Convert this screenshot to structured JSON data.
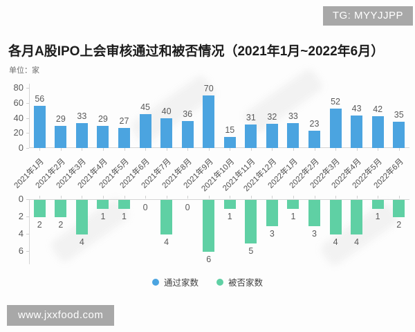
{
  "header": {
    "tg_badge": "TG: MYYJJPP",
    "title": "各月A股IPO上会审核通过和被否情况（2021年1月~2022年6月）",
    "unit_label": "单位：家"
  },
  "footer": {
    "site_badge": "www.jxxfood.com"
  },
  "colors": {
    "approved": "#4ba4e0",
    "rejected": "#5fd0a4",
    "badge_bg": "#a8a8a8",
    "badge_text": "#ffffff",
    "axis_text": "#595959",
    "axis_line": "#d4d4d4"
  },
  "chart_data": {
    "type": "bar",
    "title": "各月A股IPO上会审核通过和被否情况（2021年1月~2022年6月）",
    "unit": "家",
    "grid": false,
    "legend_position": "bottom",
    "categories": [
      "2021年1月",
      "2021年2月",
      "2021年3月",
      "2021年4月",
      "2021年5月",
      "2021年6月",
      "2021年7月",
      "2021年8月",
      "2021年9月",
      "2021年10月",
      "2021年11月",
      "2021年12月",
      "2022年1月",
      "2022年2月",
      "2022年3月",
      "2022年4月",
      "2022年5月",
      "2022年6月"
    ],
    "series": [
      {
        "name": "通过家数",
        "direction": "up",
        "color": "#4ba4e0",
        "axis_ticks": [
          0,
          20,
          40,
          60,
          80
        ],
        "axis_range": [
          0,
          80
        ],
        "values": [
          56,
          29,
          33,
          29,
          27,
          45,
          40,
          36,
          70,
          15,
          31,
          32,
          33,
          23,
          52,
          43,
          42,
          35
        ]
      },
      {
        "name": "被否家数",
        "direction": "down",
        "color": "#5fd0a4",
        "axis_ticks": [
          0,
          2,
          4,
          6
        ],
        "axis_range": [
          0,
          6
        ],
        "values": [
          2,
          2,
          4,
          1,
          1,
          0,
          4,
          0,
          6,
          1,
          5,
          3,
          1,
          3,
          4,
          4,
          1,
          2
        ]
      }
    ]
  }
}
